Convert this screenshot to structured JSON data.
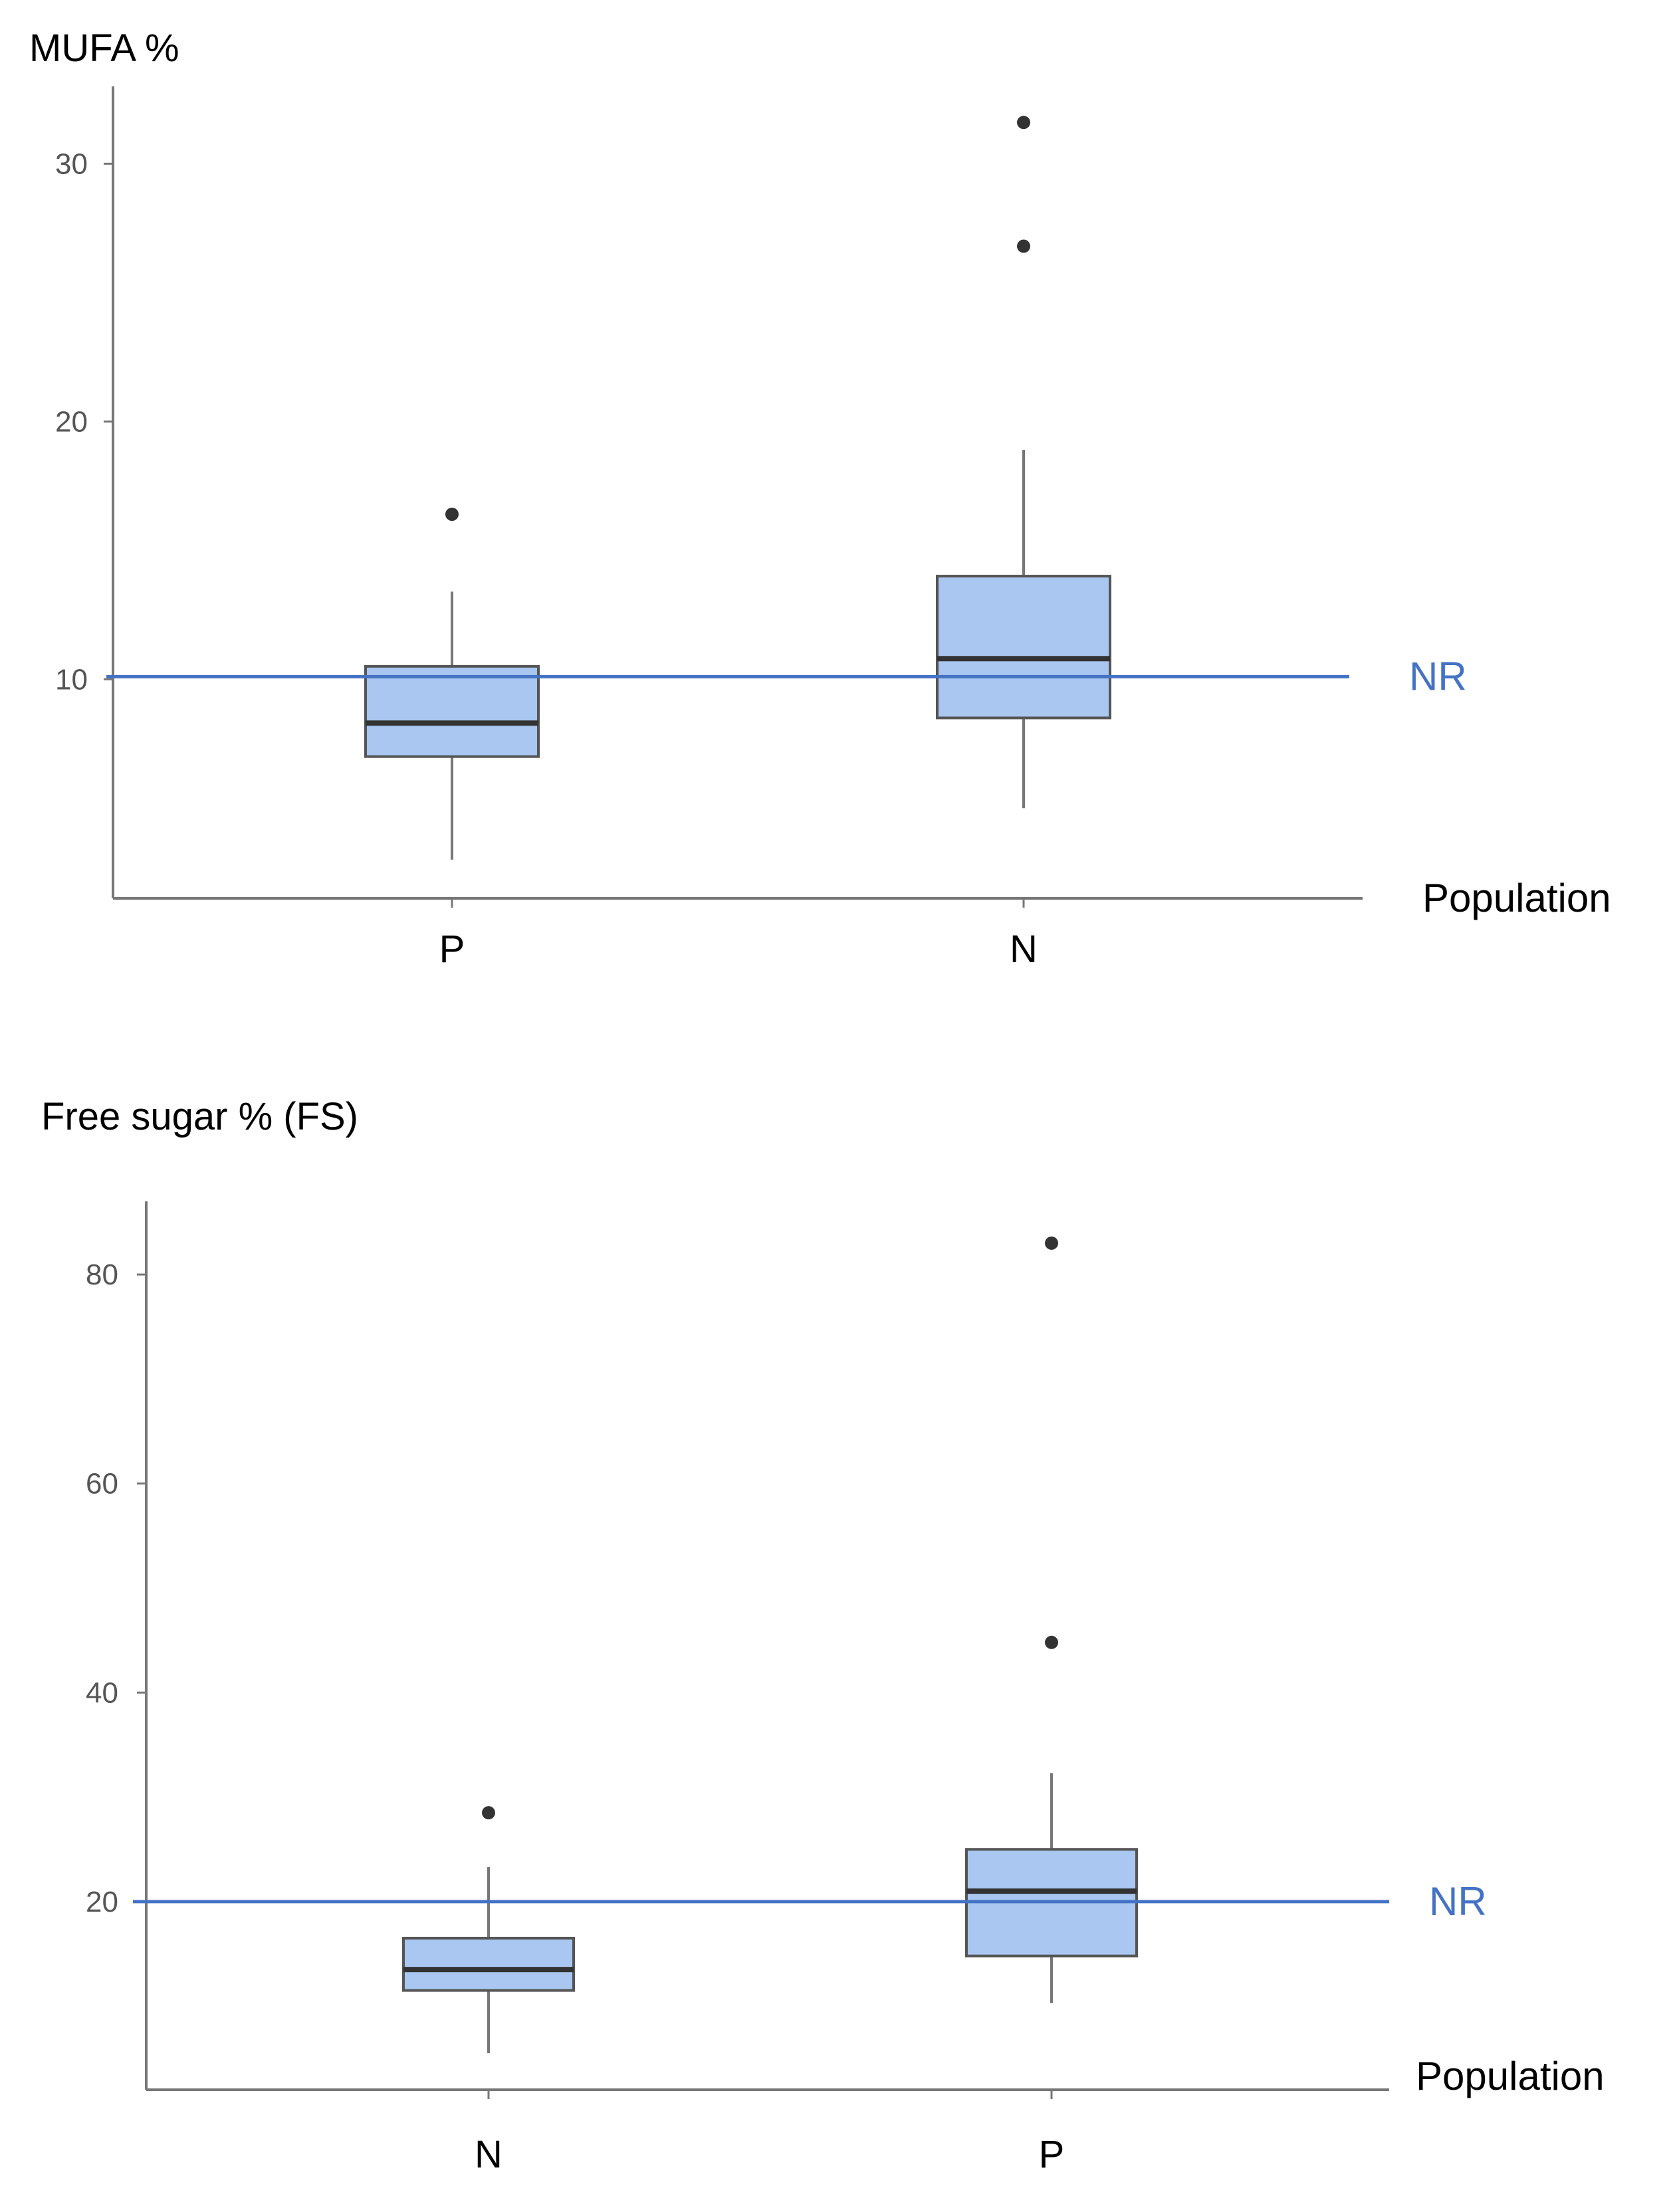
{
  "colors": {
    "box_fill": "#a9c7f0",
    "box_stroke": "#555555",
    "median": "#333333",
    "whisker": "#777777",
    "axis": "#777777",
    "outlier": "#333333",
    "reference_line": "#4472c4"
  },
  "chart_data": [
    {
      "type": "boxplot",
      "title": "MUFA %",
      "xlabel": "Population",
      "ylabel": "",
      "ylim": [
        1.5,
        33
      ],
      "yticks": [
        10,
        20,
        30
      ],
      "grid": false,
      "reference_line": {
        "label": "NR",
        "value": 10.1
      },
      "categories": [
        "P",
        "N"
      ],
      "boxes": [
        {
          "category": "P",
          "whisker_low": 3.0,
          "q1": 7.0,
          "median": 8.3,
          "q3": 10.5,
          "whisker_high": 13.4,
          "outliers": [
            16.4
          ]
        },
        {
          "category": "N",
          "whisker_low": 5.0,
          "q1": 8.5,
          "median": 10.8,
          "q3": 14.0,
          "whisker_high": 18.9,
          "outliers": [
            26.8,
            31.6
          ]
        }
      ]
    },
    {
      "type": "boxplot",
      "title": "Free sugar % (FS)",
      "xlabel": "Population",
      "ylabel": "",
      "ylim": [
        2,
        87
      ],
      "yticks": [
        20,
        40,
        60,
        80
      ],
      "grid": false,
      "reference_line": {
        "label": "NR",
        "value": 20
      },
      "categories": [
        "N",
        "P"
      ],
      "boxes": [
        {
          "category": "N",
          "whisker_low": 5.5,
          "q1": 11.5,
          "median": 13.5,
          "q3": 16.5,
          "whisker_high": 23.3,
          "outliers": [
            28.5
          ]
        },
        {
          "category": "P",
          "whisker_low": 10.3,
          "q1": 14.8,
          "median": 21.0,
          "q3": 25.0,
          "whisker_high": 32.3,
          "outliers": [
            44.8,
            83.0
          ]
        }
      ]
    }
  ]
}
